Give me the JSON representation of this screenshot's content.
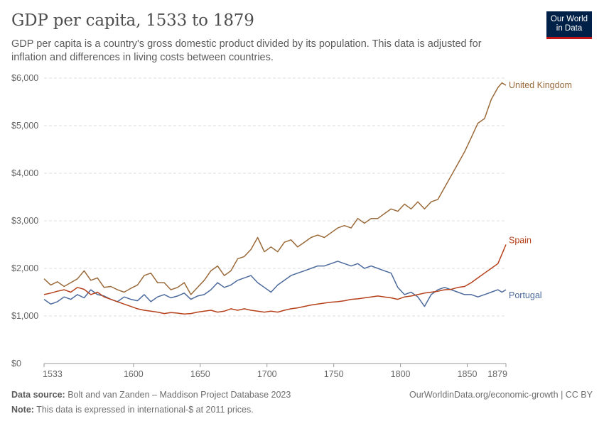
{
  "header": {
    "title": "GDP per capita, 1533 to 1879",
    "subtitle": "GDP per capita is a country's gross domestic product divided by its population. This data is adjusted for inflation and differences in living costs between countries.",
    "logo_line1": "Our World",
    "logo_line2": "in Data"
  },
  "footer": {
    "source_label": "Data source:",
    "source_text": "Bolt and van Zanden – Maddison Project Database 2023",
    "note_label": "Note:",
    "note_text": "This data is expressed in international-$ at 2011 prices.",
    "credit": "OurWorldinData.org/economic-growth | CC BY"
  },
  "chart_data": {
    "type": "line",
    "title": "GDP per capita, 1533 to 1879",
    "xlim": [
      1533,
      1879
    ],
    "ylim": [
      0,
      6000
    ],
    "x_ticks": [
      1533,
      1600,
      1650,
      1700,
      1750,
      1800,
      1850,
      1879
    ],
    "y_ticks": [
      {
        "value": 0,
        "label": "$0"
      },
      {
        "value": 1000,
        "label": "$1,000"
      },
      {
        "value": 2000,
        "label": "$2,000"
      },
      {
        "value": 3000,
        "label": "$3,000"
      },
      {
        "value": 4000,
        "label": "$4,000"
      },
      {
        "value": 5000,
        "label": "$5,000"
      },
      {
        "value": 6000,
        "label": "$6,000"
      }
    ],
    "grid": "horizontal dashed",
    "legend": "inline labels at line ends (right)",
    "series": [
      {
        "name": "United Kingdom",
        "color": "#9a6a3a",
        "x": [
          1533,
          1538,
          1543,
          1548,
          1553,
          1558,
          1563,
          1568,
          1573,
          1578,
          1583,
          1588,
          1593,
          1598,
          1603,
          1608,
          1613,
          1618,
          1623,
          1628,
          1633,
          1638,
          1643,
          1648,
          1653,
          1658,
          1663,
          1668,
          1673,
          1678,
          1683,
          1688,
          1693,
          1698,
          1703,
          1708,
          1713,
          1718,
          1723,
          1728,
          1733,
          1738,
          1743,
          1748,
          1753,
          1758,
          1763,
          1768,
          1773,
          1778,
          1783,
          1788,
          1793,
          1798,
          1803,
          1808,
          1813,
          1818,
          1823,
          1828,
          1833,
          1838,
          1843,
          1848,
          1853,
          1858,
          1863,
          1868,
          1873,
          1876,
          1879
        ],
        "values": [
          1780,
          1650,
          1720,
          1620,
          1700,
          1780,
          1950,
          1750,
          1800,
          1600,
          1620,
          1550,
          1500,
          1580,
          1650,
          1850,
          1900,
          1700,
          1700,
          1550,
          1600,
          1700,
          1450,
          1600,
          1750,
          1950,
          2050,
          1850,
          1950,
          2200,
          2250,
          2400,
          2650,
          2350,
          2450,
          2350,
          2550,
          2600,
          2450,
          2550,
          2650,
          2700,
          2650,
          2750,
          2850,
          2900,
          2850,
          3050,
          2950,
          3050,
          3050,
          3150,
          3250,
          3200,
          3350,
          3250,
          3400,
          3250,
          3400,
          3450,
          3700,
          3950,
          4200,
          4450,
          4750,
          5050,
          5150,
          5550,
          5800,
          5900,
          5850
        ]
      },
      {
        "name": "Portugal",
        "color": "#4c6a9c",
        "x": [
          1533,
          1538,
          1543,
          1548,
          1553,
          1558,
          1563,
          1568,
          1573,
          1578,
          1583,
          1588,
          1593,
          1598,
          1603,
          1608,
          1613,
          1618,
          1623,
          1628,
          1633,
          1638,
          1643,
          1648,
          1653,
          1658,
          1663,
          1668,
          1673,
          1678,
          1683,
          1688,
          1693,
          1698,
          1703,
          1708,
          1713,
          1718,
          1723,
          1728,
          1733,
          1738,
          1743,
          1748,
          1753,
          1758,
          1763,
          1768,
          1773,
          1778,
          1783,
          1788,
          1793,
          1798,
          1803,
          1808,
          1813,
          1818,
          1823,
          1828,
          1833,
          1838,
          1843,
          1848,
          1853,
          1858,
          1863,
          1868,
          1873,
          1876,
          1879
        ],
        "values": [
          1350,
          1250,
          1300,
          1400,
          1350,
          1450,
          1380,
          1550,
          1450,
          1420,
          1350,
          1300,
          1400,
          1350,
          1320,
          1450,
          1300,
          1400,
          1450,
          1380,
          1420,
          1480,
          1350,
          1420,
          1450,
          1550,
          1700,
          1600,
          1650,
          1750,
          1800,
          1850,
          1700,
          1600,
          1500,
          1650,
          1750,
          1850,
          1900,
          1950,
          2000,
          2050,
          2050,
          2100,
          2150,
          2100,
          2050,
          2100,
          2000,
          2050,
          2000,
          1950,
          1900,
          1600,
          1450,
          1500,
          1400,
          1200,
          1450,
          1550,
          1600,
          1550,
          1500,
          1450,
          1450,
          1400,
          1450,
          1500,
          1550,
          1500,
          1550
        ]
      },
      {
        "name": "Spain",
        "color": "#b5401a",
        "x": [
          1533,
          1538,
          1543,
          1548,
          1553,
          1558,
          1563,
          1568,
          1573,
          1578,
          1583,
          1588,
          1593,
          1598,
          1603,
          1608,
          1613,
          1618,
          1623,
          1628,
          1633,
          1638,
          1643,
          1648,
          1653,
          1658,
          1663,
          1668,
          1673,
          1678,
          1683,
          1688,
          1693,
          1698,
          1703,
          1708,
          1713,
          1718,
          1723,
          1728,
          1733,
          1738,
          1743,
          1748,
          1753,
          1758,
          1763,
          1768,
          1773,
          1778,
          1783,
          1788,
          1793,
          1798,
          1803,
          1808,
          1813,
          1818,
          1823,
          1828,
          1833,
          1838,
          1843,
          1848,
          1853,
          1858,
          1863,
          1868,
          1873,
          1876,
          1879
        ],
        "values": [
          1450,
          1480,
          1520,
          1550,
          1500,
          1600,
          1560,
          1450,
          1500,
          1400,
          1350,
          1300,
          1250,
          1200,
          1150,
          1120,
          1100,
          1080,
          1050,
          1070,
          1060,
          1040,
          1050,
          1080,
          1100,
          1120,
          1080,
          1100,
          1150,
          1120,
          1150,
          1120,
          1100,
          1080,
          1100,
          1080,
          1120,
          1150,
          1170,
          1200,
          1230,
          1250,
          1270,
          1290,
          1300,
          1320,
          1350,
          1360,
          1380,
          1400,
          1420,
          1400,
          1380,
          1350,
          1400,
          1420,
          1450,
          1480,
          1500,
          1520,
          1550,
          1560,
          1600,
          1620,
          1700,
          1800,
          1900,
          2000,
          2100,
          2300,
          2500
        ]
      }
    ]
  }
}
